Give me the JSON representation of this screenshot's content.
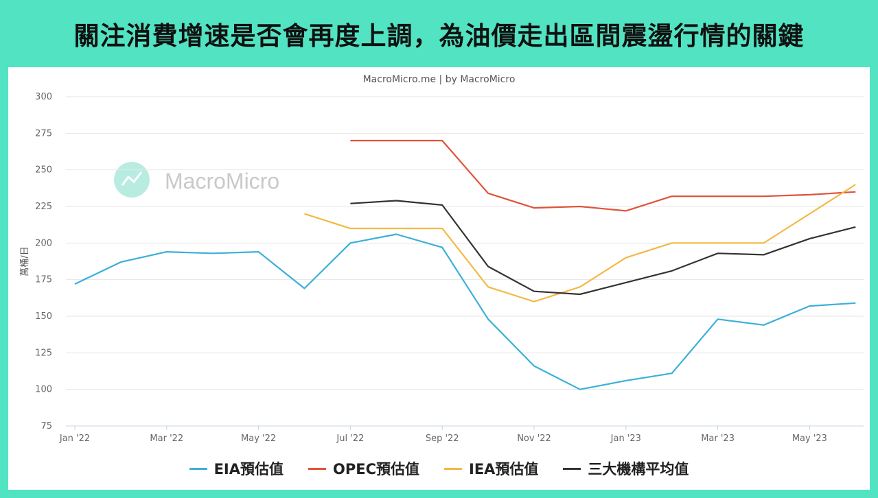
{
  "headline": "關注消費增速是否會再度上調，為油價走出區間震盪行情的關鍵",
  "source_text": "MacroMicro.me | by MacroMicro",
  "watermark_text": "MacroMicro",
  "chart_data": {
    "type": "line",
    "ylabel": "萬桶/日",
    "ylim": [
      75,
      300
    ],
    "yticks": [
      75,
      100,
      125,
      150,
      175,
      200,
      225,
      250,
      275,
      300
    ],
    "x_tick_labels": [
      "Jan '22",
      "Mar '22",
      "May '22",
      "Jul '22",
      "Sep '22",
      "Nov '22",
      "Jan '23",
      "Mar '23",
      "May '23"
    ],
    "x_tick_months": [
      0,
      2,
      4,
      6,
      8,
      10,
      12,
      14,
      16
    ],
    "x_months": [
      "Jan '22",
      "Feb '22",
      "Mar '22",
      "Apr '22",
      "May '22",
      "Jun '22",
      "Jul '22",
      "Aug '22",
      "Sep '22",
      "Oct '22",
      "Nov '22",
      "Dec '22",
      "Jan '23",
      "Feb '23",
      "Mar '23",
      "Apr '23",
      "May '23",
      "Jun '23"
    ],
    "grid": true,
    "legend_position": "bottom",
    "series": [
      {
        "name": "EIA預估值",
        "color": "#3ab0d8",
        "values": [
          172,
          187,
          194,
          193,
          194,
          169,
          200,
          206,
          197,
          148,
          116,
          100,
          106,
          111,
          148,
          144,
          157,
          159
        ]
      },
      {
        "name": "OPEC預估值",
        "color": "#e0533a",
        "values": [
          null,
          null,
          null,
          null,
          null,
          null,
          270,
          270,
          270,
          234,
          224,
          225,
          222,
          232,
          232,
          232,
          233,
          235
        ]
      },
      {
        "name": "IEA預估值",
        "color": "#f3b943",
        "values": [
          null,
          null,
          null,
          null,
          null,
          220,
          210,
          210,
          210,
          170,
          160,
          170,
          190,
          200,
          200,
          200,
          220,
          240
        ]
      },
      {
        "name": "三大機構平均值",
        "color": "#333333",
        "values": [
          null,
          null,
          null,
          null,
          null,
          null,
          227,
          229,
          226,
          184,
          167,
          165,
          173,
          181,
          193,
          192,
          203,
          211
        ]
      }
    ]
  }
}
